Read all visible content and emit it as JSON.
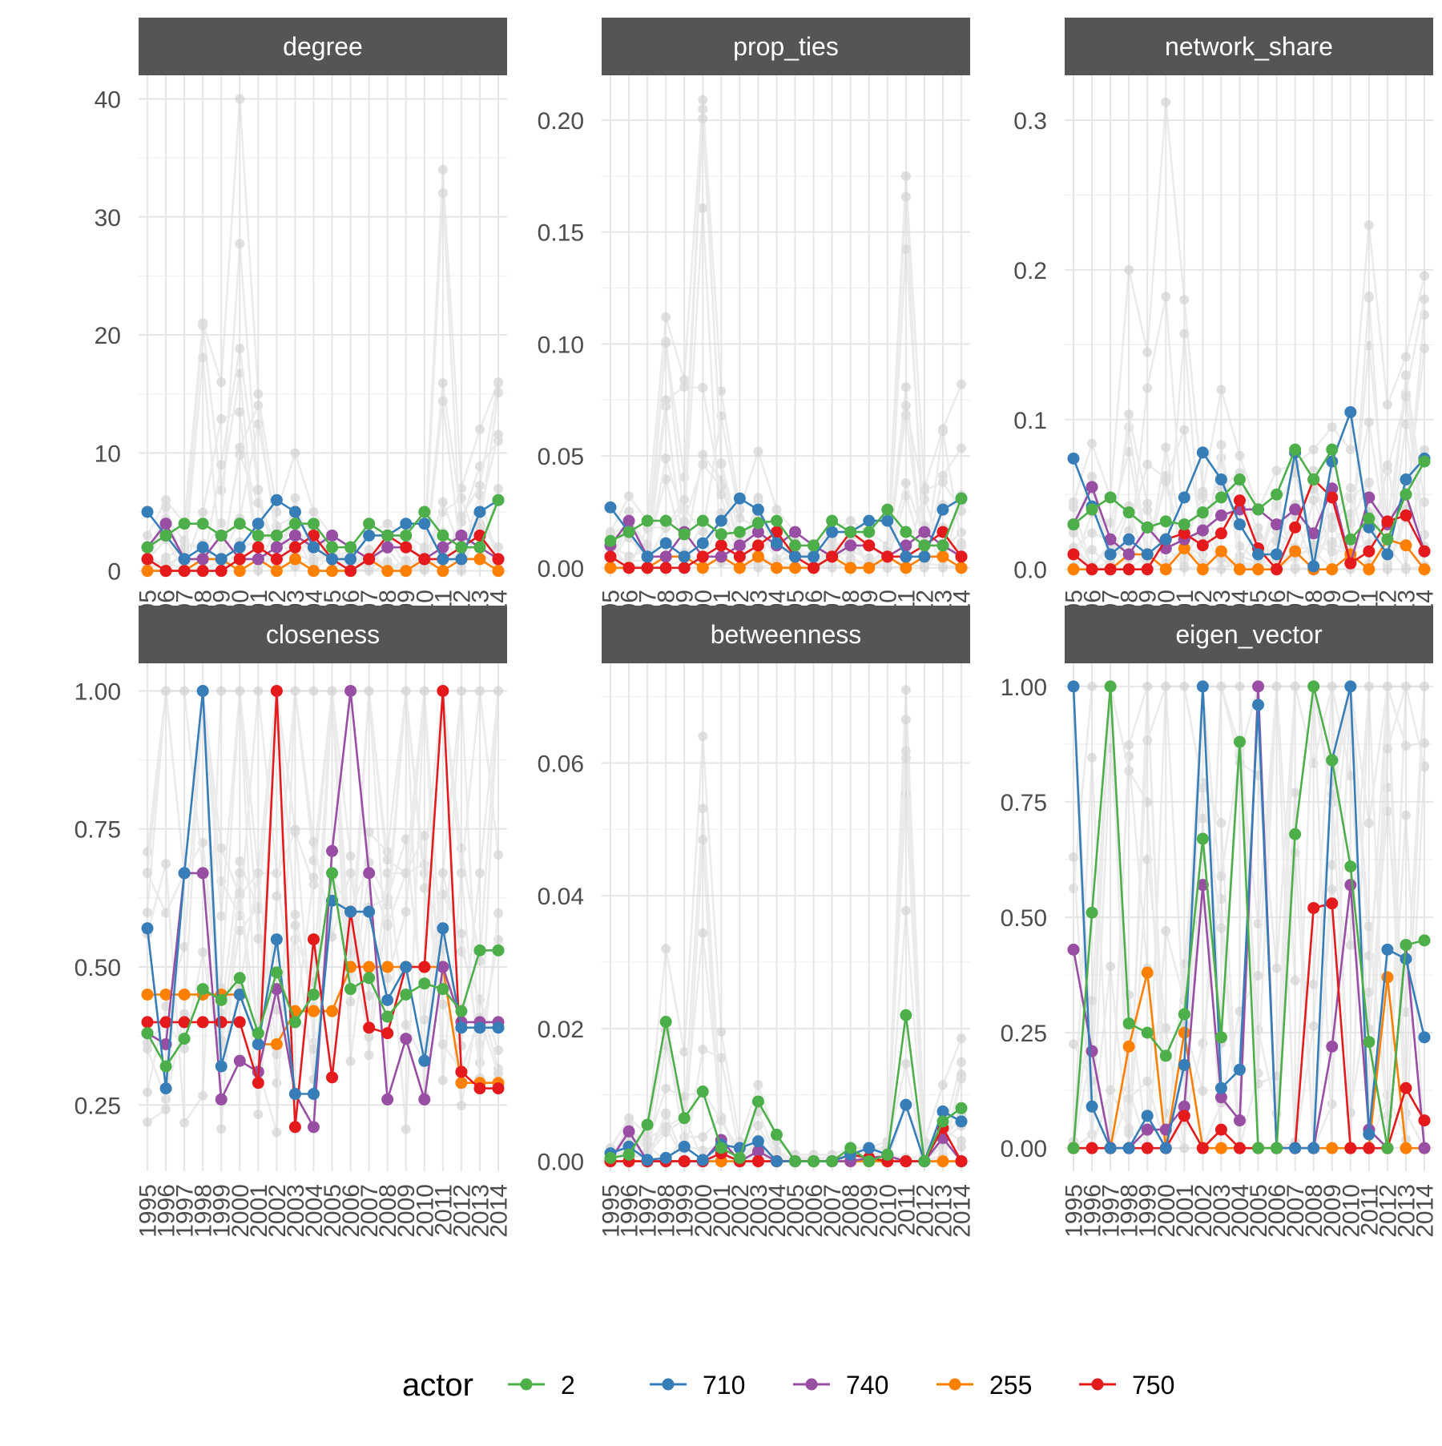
{
  "chart_data": {
    "type": "line",
    "x": [
      1995,
      1996,
      1997,
      1998,
      1999,
      2000,
      2001,
      2002,
      2003,
      2004,
      2005,
      2006,
      2007,
      2008,
      2009,
      2010,
      2011,
      2012,
      2013,
      2014
    ],
    "x_tick_labels": [
      "1995",
      "1996",
      "1997",
      "1998",
      "1999",
      "2000",
      "2001",
      "2002",
      "2003",
      "2004",
      "2005",
      "2006",
      "2007",
      "2008",
      "2009",
      "2010",
      "2011",
      "2012",
      "2013",
      "2014"
    ],
    "grid": true,
    "legend": {
      "title": "actor",
      "position": "bottom",
      "entries": [
        {
          "label": "2",
          "color": "#4daf4a"
        },
        {
          "label": "710",
          "color": "#377eb8"
        },
        {
          "label": "740",
          "color": "#984ea3"
        },
        {
          "label": "255",
          "color": "#ff7f00"
        },
        {
          "label": "750",
          "color": "#e41a1c"
        }
      ]
    },
    "background_series_color": "#c8c8c8",
    "panels": [
      {
        "title": "degree",
        "ylim": [
          -0.5,
          42
        ],
        "yticks": [
          0,
          10,
          20,
          30,
          40
        ],
        "ytick_labels": [
          "0",
          "10",
          "20",
          "30",
          "40"
        ],
        "series": [
          {
            "name": "2",
            "values": [
              2,
              3,
              4,
              4,
              3,
              4,
              3,
              3,
              4,
              4,
              2,
              2,
              4,
              3,
              3,
              5,
              3,
              2,
              2,
              6
            ]
          },
          {
            "name": "710",
            "values": [
              5,
              3,
              1,
              2,
              1,
              2,
              4,
              6,
              5,
              2,
              1,
              1,
              3,
              3,
              4,
              4,
              1,
              1,
              5,
              6
            ]
          },
          {
            "name": "740",
            "values": [
              2,
              4,
              1,
              1,
              3,
              1,
              1,
              2,
              3,
              2,
              3,
              2,
              1,
              2,
              2,
              1,
              2,
              3,
              2,
              1
            ]
          },
          {
            "name": "255",
            "values": [
              0,
              0,
              0,
              1,
              1,
              0,
              1,
              0,
              1,
              0,
              0,
              0,
              1,
              0,
              0,
              1,
              0,
              1,
              1,
              0
            ]
          },
          {
            "name": "750",
            "values": [
              1,
              0,
              0,
              0,
              0,
              1,
              2,
              1,
              2,
              3,
              1,
              0,
              1,
              3,
              2,
              1,
              1,
              2,
              3,
              1
            ]
          }
        ],
        "background_peaks": [
          3,
          6,
          4,
          21,
          16,
          40,
          15,
          5,
          10,
          5,
          3,
          2,
          3,
          4,
          3,
          2,
          34,
          7,
          12,
          16
        ]
      },
      {
        "title": "prop_ties",
        "ylim": [
          -0.004,
          0.22
        ],
        "yticks": [
          0,
          0.05,
          0.1,
          0.15,
          0.2
        ],
        "ytick_labels": [
          "0.00",
          "0.05",
          "0.10",
          "0.15",
          "0.20"
        ],
        "series": [
          {
            "name": "2",
            "values": [
              0.012,
              0.016,
              0.021,
              0.021,
              0.015,
              0.021,
              0.015,
              0.016,
              0.02,
              0.021,
              0.01,
              0.01,
              0.021,
              0.016,
              0.016,
              0.026,
              0.016,
              0.01,
              0.01,
              0.031
            ]
          },
          {
            "name": "710",
            "values": [
              0.027,
              0.016,
              0.005,
              0.011,
              0.005,
              0.011,
              0.021,
              0.031,
              0.026,
              0.011,
              0.005,
              0.005,
              0.016,
              0.016,
              0.021,
              0.021,
              0.005,
              0.005,
              0.026,
              0.031
            ]
          },
          {
            "name": "740",
            "values": [
              0.01,
              0.021,
              0.005,
              0.005,
              0.016,
              0.005,
              0.005,
              0.01,
              0.016,
              0.01,
              0.016,
              0.01,
              0.005,
              0.01,
              0.01,
              0.005,
              0.01,
              0.016,
              0.01,
              0.005
            ]
          },
          {
            "name": "255",
            "values": [
              0,
              0,
              0,
              0.005,
              0.005,
              0,
              0.005,
              0,
              0.005,
              0,
              0,
              0,
              0.005,
              0,
              0,
              0.005,
              0,
              0.005,
              0.005,
              0
            ]
          },
          {
            "name": "750",
            "values": [
              0.005,
              0,
              0,
              0,
              0,
              0.005,
              0.01,
              0.005,
              0.01,
              0.016,
              0.005,
              0,
              0.005,
              0.016,
              0.01,
              0.005,
              0.005,
              0.01,
              0.016,
              0.005
            ]
          }
        ],
        "background_peaks": [
          0.016,
          0.032,
          0.021,
          0.112,
          0.084,
          0.209,
          0.079,
          0.026,
          0.052,
          0.026,
          0.016,
          0.01,
          0.016,
          0.021,
          0.016,
          0.01,
          0.175,
          0.036,
          0.062,
          0.082
        ]
      },
      {
        "title": "network_share",
        "ylim": [
          -0.005,
          0.33
        ],
        "yticks": [
          0,
          0.1,
          0.2,
          0.3
        ],
        "ytick_labels": [
          "0.0",
          "0.1",
          "0.2",
          "0.3"
        ],
        "series": [
          {
            "name": "2",
            "values": [
              0.03,
              0.04,
              0.048,
              0.038,
              0.028,
              0.032,
              0.03,
              0.038,
              0.048,
              0.06,
              0.04,
              0.05,
              0.08,
              0.06,
              0.08,
              0.02,
              0.034,
              0.02,
              0.05,
              0.072
            ]
          },
          {
            "name": "710",
            "values": [
              0.074,
              0.042,
              0.01,
              0.02,
              0.01,
              0.02,
              0.048,
              0.078,
              0.06,
              0.03,
              0.01,
              0.01,
              0.078,
              0.002,
              0.072,
              0.105,
              0.028,
              0.01,
              0.06,
              0.074
            ]
          },
          {
            "name": "740",
            "values": [
              0.03,
              0.055,
              0.02,
              0.01,
              0.028,
              0.014,
              0.02,
              0.026,
              0.036,
              0.04,
              0.04,
              0.03,
              0.04,
              0.024,
              0.054,
              0.004,
              0.048,
              0.03,
              0.05,
              0.012
            ]
          },
          {
            "name": "255",
            "values": [
              0,
              0,
              0,
              0.01,
              0.01,
              0,
              0.014,
              0,
              0.012,
              0,
              0,
              0,
              0.012,
              0,
              0,
              0.01,
              0,
              0.02,
              0.016,
              0
            ]
          },
          {
            "name": "750",
            "values": [
              0.01,
              0,
              0,
              0,
              0,
              0.02,
              0.024,
              0.016,
              0.024,
              0.046,
              0.014,
              0,
              0.028,
              0.06,
              0.048,
              0.004,
              0.012,
              0.032,
              0.036,
              0.012
            ]
          }
        ],
        "background_peaks": [
          0.045,
          0.084,
          0.048,
          0.2,
          0.145,
          0.312,
          0.18,
          0.052,
          0.12,
          0.076,
          0.04,
          0.066,
          0.07,
          0.08,
          0.095,
          0.08,
          0.23,
          0.11,
          0.142,
          0.196
        ]
      },
      {
        "title": "closeness",
        "ylim": [
          0.13,
          1.05
        ],
        "yticks": [
          0.25,
          0.5,
          0.75,
          1.0
        ],
        "ytick_labels": [
          "0.25",
          "0.50",
          "0.75",
          "1.00"
        ],
        "series": [
          {
            "name": "2",
            "values": [
              0.38,
              0.32,
              0.37,
              0.46,
              0.44,
              0.48,
              0.38,
              0.49,
              0.4,
              0.45,
              0.67,
              0.46,
              0.48,
              0.41,
              0.45,
              0.47,
              0.46,
              0.42,
              0.53,
              0.53
            ]
          },
          {
            "name": "710",
            "values": [
              0.57,
              0.28,
              0.67,
              1.0,
              0.32,
              0.45,
              0.36,
              0.55,
              0.27,
              0.27,
              0.62,
              0.6,
              0.6,
              0.44,
              0.5,
              0.33,
              0.57,
              0.39,
              0.39,
              0.39
            ]
          },
          {
            "name": "740",
            "values": [
              0.38,
              0.36,
              0.67,
              0.67,
              0.26,
              0.33,
              0.31,
              0.46,
              0.27,
              0.21,
              0.71,
              1.0,
              0.67,
              0.26,
              0.37,
              0.26,
              0.5,
              0.4,
              0.4,
              0.4
            ]
          },
          {
            "name": "255",
            "values": [
              0.45,
              0.45,
              0.45,
              0.45,
              0.45,
              0.45,
              0.36,
              0.36,
              0.42,
              0.42,
              0.42,
              0.5,
              0.5,
              0.5,
              0.5,
              0.5,
              0.5,
              0.29,
              0.29,
              0.29
            ]
          },
          {
            "name": "750",
            "values": [
              0.4,
              0.4,
              0.4,
              0.4,
              0.4,
              0.4,
              0.29,
              1.0,
              0.21,
              0.55,
              0.3,
              0.6,
              0.39,
              0.38,
              0.5,
              0.5,
              1.0,
              0.31,
              0.28,
              0.28
            ]
          }
        ]
      },
      {
        "title": "betweenness",
        "ylim": [
          -0.0015,
          0.075
        ],
        "yticks": [
          0,
          0.02,
          0.04,
          0.06
        ],
        "ytick_labels": [
          "0.00",
          "0.02",
          "0.04",
          "0.06"
        ],
        "series": [
          {
            "name": "2",
            "values": [
              0.0005,
              0.001,
              0.0055,
              0.021,
              0.0065,
              0.0105,
              0.002,
              0.0005,
              0.009,
              0.004,
              0,
              0,
              0,
              0.002,
              0,
              0.001,
              0.022,
              0,
              0.006,
              0.008
            ]
          },
          {
            "name": "710",
            "values": [
              0.0012,
              0.0022,
              0.0002,
              0.0005,
              0.0022,
              0.0002,
              0.0025,
              0.002,
              0.003,
              0,
              0,
              0,
              0,
              0.001,
              0.002,
              0.001,
              0.0085,
              0,
              0.0075,
              0.006
            ]
          },
          {
            "name": "740",
            "values": [
              0.0002,
              0.0045,
              0,
              0,
              0,
              0,
              0.0032,
              0,
              0.0015,
              0,
              0,
              0,
              0,
              0,
              0.0005,
              0.0008,
              0,
              0,
              0.0035,
              0
            ]
          },
          {
            "name": "255",
            "values": [
              0,
              0,
              0,
              0,
              0,
              0,
              0,
              0,
              0,
              0,
              0,
              0,
              0,
              0,
              0,
              0,
              0,
              0,
              0,
              0
            ]
          },
          {
            "name": "750",
            "values": [
              0,
              0,
              0,
              0,
              0,
              0,
              0.0012,
              0,
              0,
              0,
              0,
              0,
              0,
              0.001,
              0.0005,
              0,
              0,
              0,
              0.005,
              0
            ]
          }
        ],
        "background_peaks": [
          0.002,
          0.0065,
          0.004,
          0.032,
          0.0165,
          0.064,
          0.0195,
          0.003,
          0.0115,
          0.003,
          0.001,
          0.001,
          0.001,
          0.002,
          0.002,
          0.003,
          0.071,
          0.003,
          0.0115,
          0.0185
        ]
      },
      {
        "title": "eigen_vector",
        "ylim": [
          -0.05,
          1.05
        ],
        "yticks": [
          0,
          0.25,
          0.5,
          0.75,
          1.0
        ],
        "ytick_labels": [
          "0.00",
          "0.25",
          "0.50",
          "0.75",
          "1.00"
        ],
        "series": [
          {
            "name": "2",
            "values": [
              0.0,
              0.51,
              1.0,
              0.27,
              0.25,
              0.2,
              0.29,
              0.67,
              0.24,
              0.88,
              0.0,
              0.0,
              0.68,
              1.0,
              0.84,
              0.61,
              0.23,
              0.0,
              0.44,
              0.45
            ]
          },
          {
            "name": "710",
            "values": [
              1.0,
              0.09,
              0.0,
              0.0,
              0.07,
              0.0,
              0.18,
              1.0,
              0.13,
              0.17,
              0.96,
              0.0,
              0.0,
              0.0,
              0.84,
              1.0,
              0.03,
              0.43,
              0.41,
              0.24
            ]
          },
          {
            "name": "740",
            "values": [
              0.43,
              0.21,
              0.0,
              0.0,
              0.04,
              0.04,
              0.09,
              0.57,
              0.11,
              0.06,
              1.0,
              0.0,
              0.0,
              0.0,
              0.22,
              0.57,
              0.04,
              0.0,
              0.44,
              0.0
            ]
          },
          {
            "name": "255",
            "values": [
              0.0,
              0.0,
              0.0,
              0.22,
              0.38,
              0.0,
              0.25,
              0.0,
              0.0,
              0.0,
              0.0,
              0.0,
              0.0,
              0.0,
              0.0,
              0.0,
              0.0,
              0.37,
              0.0,
              0.0
            ]
          },
          {
            "name": "750",
            "values": [
              0.0,
              0.0,
              0.0,
              0.0,
              0.0,
              0.0,
              0.07,
              0.0,
              0.04,
              0.0,
              0.0,
              0.0,
              0.0,
              0.52,
              0.53,
              0.0,
              0.0,
              0.0,
              0.13,
              0.06
            ]
          }
        ]
      }
    ]
  }
}
